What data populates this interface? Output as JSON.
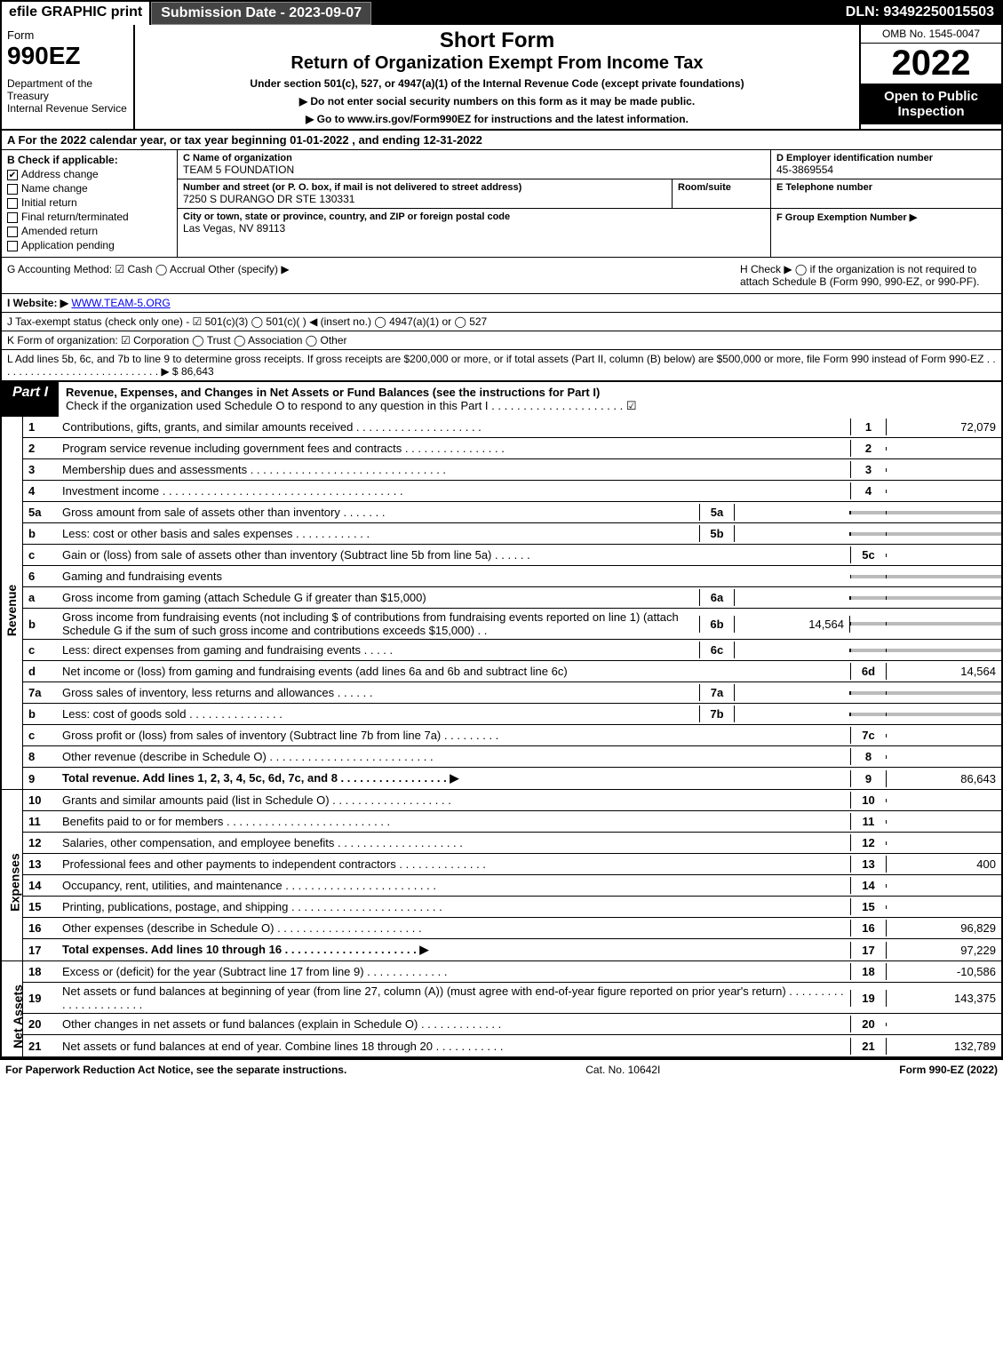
{
  "top": {
    "efile": "efile GRAPHIC print",
    "submission_label": "Submission Date - 2023-09-07",
    "dln": "DLN: 93492250015503"
  },
  "header": {
    "form_word": "Form",
    "form_number": "990EZ",
    "dept": "Department of the Treasury\nInternal Revenue Service",
    "title1": "Short Form",
    "title2": "Return of Organization Exempt From Income Tax",
    "subtitle": "Under section 501(c), 527, or 4947(a)(1) of the Internal Revenue Code (except private foundations)",
    "warn": "▶ Do not enter social security numbers on this form as it may be made public.",
    "goto": "▶ Go to www.irs.gov/Form990EZ for instructions and the latest information.",
    "omb": "OMB No. 1545-0047",
    "year": "2022",
    "open": "Open to Public Inspection"
  },
  "A": "A  For the 2022 calendar year, or tax year beginning 01-01-2022 , and ending 12-31-2022",
  "B": {
    "hdr": "B  Check if applicable:",
    "items": [
      "Address change",
      "Name change",
      "Initial return",
      "Final return/terminated",
      "Amended return",
      "Application pending"
    ],
    "checked": [
      true,
      false,
      false,
      false,
      false,
      false
    ]
  },
  "C": {
    "name_hdr": "C Name of organization",
    "name": "TEAM 5 FOUNDATION",
    "street_hdr": "Number and street (or P. O. box, if mail is not delivered to street address)",
    "street": "7250 S DURANGO DR STE 130331",
    "room_hdr": "Room/suite",
    "city_hdr": "City or town, state or province, country, and ZIP or foreign postal code",
    "city": "Las Vegas, NV  89113"
  },
  "D": {
    "hdr": "D Employer identification number",
    "ein": "45-3869554",
    "e_hdr": "E Telephone number",
    "f_hdr": "F Group Exemption Number   ▶"
  },
  "G": "G Accounting Method:   ☑ Cash   ◯ Accrual   Other (specify) ▶",
  "H": "H   Check ▶  ◯  if the organization is not required to attach Schedule B (Form 990, 990-EZ, or 990-PF).",
  "I": "I Website: ▶ WWW.TEAM-5.ORG",
  "J": "J Tax-exempt status (check only one) - ☑ 501(c)(3) ◯ 501(c)(  ) ◀ (insert no.) ◯ 4947(a)(1) or ◯ 527",
  "K": "K Form of organization:   ☑ Corporation   ◯ Trust   ◯ Association   ◯ Other",
  "L": "L Add lines 5b, 6c, and 7b to line 9 to determine gross receipts. If gross receipts are $200,000 or more, or if total assets (Part II, column (B) below) are $500,000 or more, file Form 990 instead of Form 990-EZ  .  .  .  .  .  .  .  .  .  .  .  .  .  .  .  .  .  .  .  .  .  .  .  .  .  .  .  .  ▶ $ 86,643",
  "part1": {
    "tag": "Part I",
    "title": "Revenue, Expenses, and Changes in Net Assets or Fund Balances (see the instructions for Part I)",
    "check": "Check if the organization used Schedule O to respond to any question in this Part I  .  .  .  .  .  .  .  .  .  .  .  .  .  .  .  .  .  .  .  .  .  ☑"
  },
  "sides": {
    "revenue": "Revenue",
    "expenses": "Expenses",
    "netassets": "Net Assets"
  },
  "rev": [
    {
      "n": "1",
      "d": "Contributions, gifts, grants, and similar amounts received  .  .  .  .  .  .  .  .  .  .  .  .  .  .  .  .  .  .  .  .",
      "r": "1",
      "v": "72,079"
    },
    {
      "n": "2",
      "d": "Program service revenue including government fees and contracts  .  .  .  .  .  .  .  .  .  .  .  .  .  .  .  .",
      "r": "2",
      "v": ""
    },
    {
      "n": "3",
      "d": "Membership dues and assessments  .  .  .  .  .  .  .  .  .  .  .  .  .  .  .  .  .  .  .  .  .  .  .  .  .  .  .  .  .  .  .",
      "r": "3",
      "v": ""
    },
    {
      "n": "4",
      "d": "Investment income  .  .  .  .  .  .  .  .  .  .  .  .  .  .  .  .  .  .  .  .  .  .  .  .  .  .  .  .  .  .  .  .  .  .  .  .  .  .",
      "r": "4",
      "v": ""
    },
    {
      "n": "5a",
      "d": "Gross amount from sale of assets other than inventory  .  .  .  .  .  .  .",
      "sub": "5a",
      "sv": "",
      "shade": true
    },
    {
      "n": "b",
      "d": "Less: cost or other basis and sales expenses  .  .  .  .  .  .  .  .  .  .  .  .",
      "sub": "5b",
      "sv": "",
      "shade": true
    },
    {
      "n": "c",
      "d": "Gain or (loss) from sale of assets other than inventory (Subtract line 5b from line 5a)  .  .  .  .  .  .",
      "r": "5c",
      "v": ""
    },
    {
      "n": "6",
      "d": "Gaming and fundraising events",
      "shade": true,
      "noval": true
    },
    {
      "n": "a",
      "d": "Gross income from gaming (attach Schedule G if greater than $15,000)",
      "sub": "6a",
      "sv": "",
      "shade": true
    },
    {
      "n": "b",
      "d": "Gross income from fundraising events (not including $                    of contributions from fundraising events reported on line 1) (attach Schedule G if the sum of such gross income and contributions exceeds $15,000)   .  .",
      "sub": "6b",
      "sv": "14,564",
      "shade": true
    },
    {
      "n": "c",
      "d": "Less: direct expenses from gaming and fundraising events   .  .  .  .  .",
      "sub": "6c",
      "sv": "",
      "shade": true
    },
    {
      "n": "d",
      "d": "Net income or (loss) from gaming and fundraising events (add lines 6a and 6b and subtract line 6c)",
      "r": "6d",
      "v": "14,564"
    },
    {
      "n": "7a",
      "d": "Gross sales of inventory, less returns and allowances  .  .  .  .  .  .",
      "sub": "7a",
      "sv": "",
      "shade": true
    },
    {
      "n": "b",
      "d": "Less: cost of goods sold        .  .  .  .  .  .  .  .  .  .  .  .  .  .  .",
      "sub": "7b",
      "sv": "",
      "shade": true
    },
    {
      "n": "c",
      "d": "Gross profit or (loss) from sales of inventory (Subtract line 7b from line 7a)  .  .  .  .  .  .  .  .  .",
      "r": "7c",
      "v": ""
    },
    {
      "n": "8",
      "d": "Other revenue (describe in Schedule O)  .  .  .  .  .  .  .  .  .  .  .  .  .  .  .  .  .  .  .  .  .  .  .  .  .  .",
      "r": "8",
      "v": ""
    },
    {
      "n": "9",
      "d": "Total revenue. Add lines 1, 2, 3, 4, 5c, 6d, 7c, and 8   .  .  .  .  .  .  .  .  .  .  .  .  .  .  .  .  .     ▶",
      "r": "9",
      "v": "86,643",
      "bold": true
    }
  ],
  "exp": [
    {
      "n": "10",
      "d": "Grants and similar amounts paid (list in Schedule O)  .  .  .  .  .  .  .  .  .  .  .  .  .  .  .  .  .  .  .",
      "r": "10",
      "v": ""
    },
    {
      "n": "11",
      "d": "Benefits paid to or for members      .  .  .  .  .  .  .  .  .  .  .  .  .  .  .  .  .  .  .  .  .  .  .  .  .  .",
      "r": "11",
      "v": ""
    },
    {
      "n": "12",
      "d": "Salaries, other compensation, and employee benefits  .  .  .  .  .  .  .  .  .  .  .  .  .  .  .  .  .  .  .  .",
      "r": "12",
      "v": ""
    },
    {
      "n": "13",
      "d": "Professional fees and other payments to independent contractors  .  .  .  .  .  .  .  .  .  .  .  .  .  .",
      "r": "13",
      "v": "400"
    },
    {
      "n": "14",
      "d": "Occupancy, rent, utilities, and maintenance  .  .  .  .  .  .  .  .  .  .  .  .  .  .  .  .  .  .  .  .  .  .  .  .",
      "r": "14",
      "v": ""
    },
    {
      "n": "15",
      "d": "Printing, publications, postage, and shipping .  .  .  .  .  .  .  .  .  .  .  .  .  .  .  .  .  .  .  .  .  .  .  .",
      "r": "15",
      "v": ""
    },
    {
      "n": "16",
      "d": "Other expenses (describe in Schedule O)     .  .  .  .  .  .  .  .  .  .  .  .  .  .  .  .  .  .  .  .  .  .  .",
      "r": "16",
      "v": "96,829"
    },
    {
      "n": "17",
      "d": "Total expenses. Add lines 10 through 16      .  .  .  .  .  .  .  .  .  .  .  .  .  .  .  .  .  .  .  .  .   ▶",
      "r": "17",
      "v": "97,229",
      "bold": true
    }
  ],
  "net": [
    {
      "n": "18",
      "d": "Excess or (deficit) for the year (Subtract line 17 from line 9)       .  .  .  .  .  .  .  .  .  .  .  .  .",
      "r": "18",
      "v": "-10,586"
    },
    {
      "n": "19",
      "d": "Net assets or fund balances at beginning of year (from line 27, column (A)) (must agree with end-of-year figure reported on prior year's return)  .  .  .  .  .  .  .  .  .  .  .  .  .  .  .  .  .  .  .  .  .  .",
      "r": "19",
      "v": "143,375"
    },
    {
      "n": "20",
      "d": "Other changes in net assets or fund balances (explain in Schedule O)  .  .  .  .  .  .  .  .  .  .  .  .  .",
      "r": "20",
      "v": ""
    },
    {
      "n": "21",
      "d": "Net assets or fund balances at end of year. Combine lines 18 through 20  .  .  .  .  .  .  .  .  .  .  .",
      "r": "21",
      "v": "132,789"
    }
  ],
  "footer": {
    "left": "For Paperwork Reduction Act Notice, see the separate instructions.",
    "cat": "Cat. No. 10642I",
    "right": "Form 990-EZ (2022)"
  }
}
